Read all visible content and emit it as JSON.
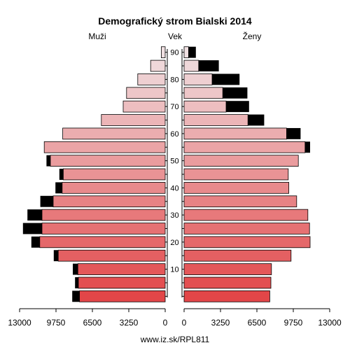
{
  "chart_data": {
    "type": "bar",
    "title": "Demografický strom Bialski 2014",
    "left_label": "Muži",
    "center_label": "Vek",
    "right_label": "Ženy",
    "caption": "www.iz.sk/RPL811",
    "age_groups": [
      "0-4",
      "5-9",
      "10-14",
      "15-19",
      "20-24",
      "25-29",
      "30-34",
      "35-39",
      "40-44",
      "45-49",
      "50-54",
      "55-59",
      "60-64",
      "65-69",
      "70-74",
      "75-79",
      "80-84",
      "85-89",
      "90+"
    ],
    "age_ticks": [
      "10",
      "20",
      "30",
      "40",
      "50",
      "60",
      "70",
      "80",
      "90"
    ],
    "value_ticks_left": [
      "13000",
      "9750",
      "6500",
      "3250",
      "0"
    ],
    "value_ticks_right": [
      "0",
      "3250",
      "6500",
      "9750",
      "13000"
    ],
    "xlim": [
      0,
      13000
    ],
    "series": [
      {
        "name": "Muži",
        "values": [
          7650,
          7750,
          7800,
          9550,
          11200,
          11000,
          11000,
          10000,
          9200,
          9100,
          10250,
          10800,
          9150,
          5700,
          3750,
          3450,
          2450,
          1300,
          350
        ]
      },
      {
        "name": "Muži (black)",
        "values": [
          650,
          300,
          450,
          400,
          750,
          1700,
          1300,
          1150,
          600,
          350,
          350,
          0,
          0,
          0,
          0,
          0,
          0,
          0,
          0
        ]
      },
      {
        "name": "Ženy",
        "values": [
          7650,
          7750,
          7800,
          9550,
          11250,
          11200,
          11050,
          10050,
          9350,
          9300,
          10200,
          10800,
          9150,
          5700,
          3750,
          3450,
          2500,
          1300,
          400
        ]
      },
      {
        "name": "Ženy (black)",
        "values": [
          0,
          0,
          0,
          0,
          0,
          0,
          0,
          0,
          0,
          0,
          0,
          450,
          1250,
          1450,
          2050,
          2200,
          2450,
          1800,
          650
        ]
      }
    ]
  }
}
